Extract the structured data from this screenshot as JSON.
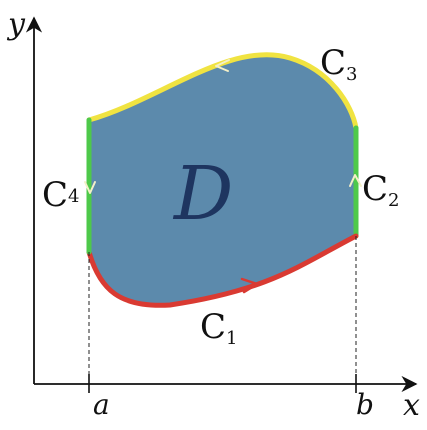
{
  "axes": {
    "x_label": "x",
    "y_label": "y",
    "a_label": "a",
    "b_label": "b"
  },
  "region": {
    "label": "D",
    "fill_color": "#5c8aac",
    "label_color": "#1e3560"
  },
  "curves": [
    {
      "name": "C",
      "subscript": "1",
      "color": "#d93a32",
      "role": "bottom"
    },
    {
      "name": "C",
      "subscript": "2",
      "color": "#4ec94a",
      "role": "right"
    },
    {
      "name": "C",
      "subscript": "3",
      "color": "#f0e341",
      "role": "top"
    },
    {
      "name": "C",
      "subscript": "4",
      "color": "#4ec94a",
      "role": "left"
    }
  ],
  "arrow_colors": {
    "on_red": "#d93a32",
    "on_light": "#f4f0c8"
  }
}
